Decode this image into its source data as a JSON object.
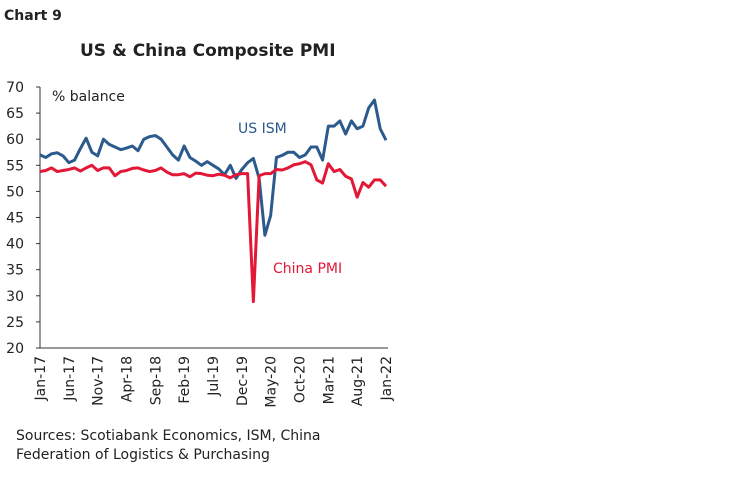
{
  "header": "Chart 9",
  "chart_data": {
    "type": "line",
    "title": "US & China Composite PMI",
    "y_label": "% balance",
    "categories": [
      "Jan-17",
      null,
      null,
      null,
      null,
      "Jun-17",
      null,
      null,
      null,
      null,
      "Nov-17",
      null,
      null,
      null,
      null,
      "Apr-18",
      null,
      null,
      null,
      null,
      "Sep-18",
      null,
      null,
      null,
      null,
      "Feb-19",
      null,
      null,
      null,
      null,
      "Jul-19",
      null,
      null,
      null,
      null,
      "Dec-19",
      null,
      null,
      null,
      null,
      "May-20",
      null,
      null,
      null,
      null,
      "Oct-20",
      null,
      null,
      null,
      null,
      "Mar-21",
      null,
      null,
      null,
      null,
      "Aug-21",
      null,
      null,
      null,
      null,
      "Jan-22"
    ],
    "series": [
      {
        "name": "US ISM",
        "color": "#2b5a8c",
        "values": [
          57,
          56.5,
          57.2,
          57.4,
          56.8,
          55.5,
          56,
          58.2,
          60.2,
          57.5,
          56.8,
          60,
          59,
          58.5,
          58,
          58.3,
          58.7,
          57.8,
          60,
          60.5,
          60.7,
          60,
          58.5,
          57,
          56,
          58.7,
          56.5,
          55.8,
          55,
          55.7,
          55,
          54.3,
          53.2,
          55,
          52.5,
          54.2,
          55.5,
          56.3,
          52.5,
          41.6,
          45.4,
          56.5,
          56.9,
          57.5,
          57.5,
          56.5,
          57,
          58.5,
          58.5,
          56,
          62.5,
          62.5,
          63.5,
          61,
          63.5,
          62,
          62.5,
          66,
          67.5,
          62,
          59.8
        ]
      },
      {
        "name": "China PMI",
        "color": "#e31837",
        "values": [
          53.8,
          54,
          54.5,
          53.8,
          54,
          54.2,
          54.5,
          53.9,
          54.5,
          55,
          54,
          54.5,
          54.5,
          53,
          53.8,
          54,
          54.4,
          54.5,
          54.1,
          53.8,
          54,
          54.5,
          53.7,
          53.2,
          53.2,
          53.4,
          52.8,
          53.5,
          53.4,
          53.1,
          53,
          53.3,
          53.1,
          52.6,
          53.2,
          53.4,
          53.4,
          28.9,
          53,
          53.4,
          53.4,
          54.2,
          54.1,
          54.5,
          55.1,
          55.3,
          55.7,
          55.1,
          52.2,
          51.6,
          55.3,
          53.8,
          54.2,
          52.9,
          52.4,
          48.9,
          51.7,
          50.8,
          52.2,
          52.2,
          51
        ]
      }
    ],
    "ylim": [
      20,
      70
    ],
    "yticks": [
      20,
      25,
      30,
      35,
      40,
      45,
      50,
      55,
      60,
      65,
      70
    ]
  },
  "source": [
    "Sources: Scotiabank Economics, ISM, China",
    "Federation of Logistics & Purchasing"
  ]
}
